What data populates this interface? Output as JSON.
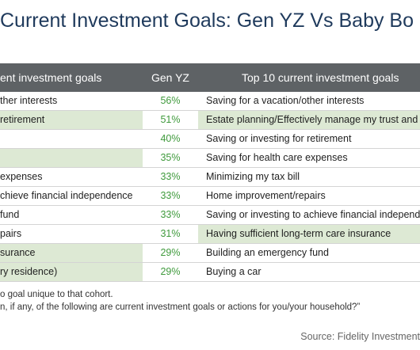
{
  "title": "Current Investment Goals: Gen YZ Vs Baby Bo",
  "table": {
    "header": [
      "ent investment goals",
      "Gen YZ",
      "Top 10 current investment goals"
    ],
    "rows": [
      {
        "left": "ther interests",
        "left_highlight": false,
        "gen_yz": "56%",
        "right": "Saving for a vacation/other interests",
        "right_highlight": false
      },
      {
        "left": "retirement",
        "left_highlight": true,
        "gen_yz": "51%",
        "right": "Estate planning/Effectively manage my trust and estate",
        "right_highlight": true
      },
      {
        "left": null,
        "left_highlight": false,
        "gen_yz": "40%",
        "right": "Saving or investing for retirement",
        "right_highlight": false
      },
      {
        "left": null,
        "left_highlight": true,
        "gen_yz": "35%",
        "right": "Saving for health care expenses",
        "right_highlight": false
      },
      {
        "left": "expenses",
        "left_highlight": false,
        "gen_yz": "33%",
        "right": "Minimizing my tax bill",
        "right_highlight": false
      },
      {
        "left": "chieve financial independence",
        "left_highlight": false,
        "gen_yz": "33%",
        "right": "Home improvement/repairs",
        "right_highlight": false
      },
      {
        "left": " fund",
        "left_highlight": false,
        "gen_yz": "33%",
        "right": "Saving or investing to achieve financial independence",
        "right_highlight": false
      },
      {
        "left": "pairs",
        "left_highlight": false,
        "gen_yz": "31%",
        "right": "Having sufficient long-term care insurance",
        "right_highlight": true
      },
      {
        "left": "surance",
        "left_highlight": true,
        "gen_yz": "29%",
        "right": "Building an emergency fund",
        "right_highlight": false
      },
      {
        "left": "ry residence)",
        "left_highlight": true,
        "gen_yz": "29%",
        "right": "Buying a car",
        "right_highlight": false
      }
    ]
  },
  "footnotes": [
    "o goal unique to that cohort.",
    "n, if any, of the following are current investment goals or actions for you/your household?”"
  ],
  "source": "Source: Fidelity Investment"
}
